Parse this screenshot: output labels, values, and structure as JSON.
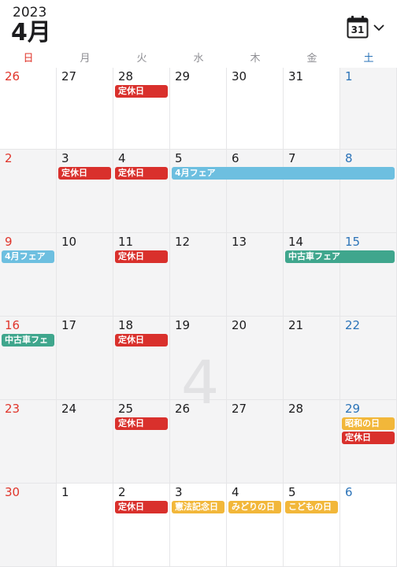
{
  "header": {
    "year": "2023",
    "month": "4月",
    "calendar_icon_day": "31",
    "calendar_icon": "calendar-icon",
    "chevron_icon": "chevron-down-icon"
  },
  "weekdays": [
    {
      "label": "日",
      "color": "#e0352b"
    },
    {
      "label": "月",
      "color": "#8e8e93"
    },
    {
      "label": "火",
      "color": "#8e8e93"
    },
    {
      "label": "水",
      "color": "#8e8e93"
    },
    {
      "label": "木",
      "color": "#8e8e93"
    },
    {
      "label": "金",
      "color": "#8e8e93"
    },
    {
      "label": "土",
      "color": "#2b73b8"
    }
  ],
  "watermark": "4",
  "weeks": [
    [
      "26",
      "27",
      "28",
      "29",
      "30",
      "31",
      "1"
    ],
    [
      "2",
      "3",
      "4",
      "5",
      "6",
      "7",
      "8"
    ],
    [
      "9",
      "10",
      "11",
      "12",
      "13",
      "14",
      "15"
    ],
    [
      "16",
      "17",
      "18",
      "19",
      "20",
      "21",
      "22"
    ],
    [
      "23",
      "24",
      "25",
      "26",
      "27",
      "28",
      "29"
    ],
    [
      "30",
      "1",
      "2",
      "3",
      "4",
      "5",
      "6"
    ]
  ],
  "events": [
    {
      "name": "ev-teikyubi-0328",
      "label": "定休日",
      "color": "red",
      "week": 0,
      "start": 2,
      "span": 1,
      "lane": 0
    },
    {
      "name": "ev-teikyubi-0403",
      "label": "定休日",
      "color": "red",
      "week": 1,
      "start": 1,
      "span": 1,
      "lane": 0
    },
    {
      "name": "ev-teikyubi-0404",
      "label": "定休日",
      "color": "red",
      "week": 1,
      "start": 2,
      "span": 1,
      "lane": 0
    },
    {
      "name": "ev-4gatsu-fair-1",
      "label": "4月フェア",
      "color": "blue",
      "week": 1,
      "start": 3,
      "span": 4,
      "lane": 0
    },
    {
      "name": "ev-4gatsu-fair-2",
      "label": "4月フェア",
      "color": "blue",
      "week": 2,
      "start": 0,
      "span": 1,
      "lane": 0
    },
    {
      "name": "ev-teikyubi-0411",
      "label": "定休日",
      "color": "red",
      "week": 2,
      "start": 2,
      "span": 1,
      "lane": 0
    },
    {
      "name": "ev-chukosha-fair-1",
      "label": "中古車フェア",
      "color": "green",
      "week": 2,
      "start": 5,
      "span": 2,
      "lane": 0
    },
    {
      "name": "ev-chukosha-fair-2",
      "label": "中古車フェ",
      "color": "green",
      "week": 3,
      "start": 0,
      "span": 1,
      "lane": 0
    },
    {
      "name": "ev-teikyubi-0418",
      "label": "定休日",
      "color": "red",
      "week": 3,
      "start": 2,
      "span": 1,
      "lane": 0
    },
    {
      "name": "ev-teikyubi-0425",
      "label": "定休日",
      "color": "red",
      "week": 4,
      "start": 2,
      "span": 1,
      "lane": 0
    },
    {
      "name": "ev-showa-no-hi",
      "label": "昭和の日",
      "color": "yellow",
      "week": 4,
      "start": 6,
      "span": 1,
      "lane": 0
    },
    {
      "name": "ev-teikyubi-0429",
      "label": "定休日",
      "color": "red",
      "week": 4,
      "start": 6,
      "span": 1,
      "lane": 1
    },
    {
      "name": "ev-teikyubi-0502",
      "label": "定休日",
      "color": "red",
      "week": 5,
      "start": 2,
      "span": 1,
      "lane": 0
    },
    {
      "name": "ev-kenpo-kinenbi",
      "label": "憲法記念日",
      "color": "yellow",
      "week": 5,
      "start": 3,
      "span": 1,
      "lane": 0
    },
    {
      "name": "ev-midori-no-hi",
      "label": "みどりの日",
      "color": "yellow",
      "week": 5,
      "start": 4,
      "span": 1,
      "lane": 0
    },
    {
      "name": "ev-kodomo-no-hi",
      "label": "こどもの日",
      "color": "yellow",
      "week": 5,
      "start": 5,
      "span": 1,
      "lane": 0
    }
  ]
}
